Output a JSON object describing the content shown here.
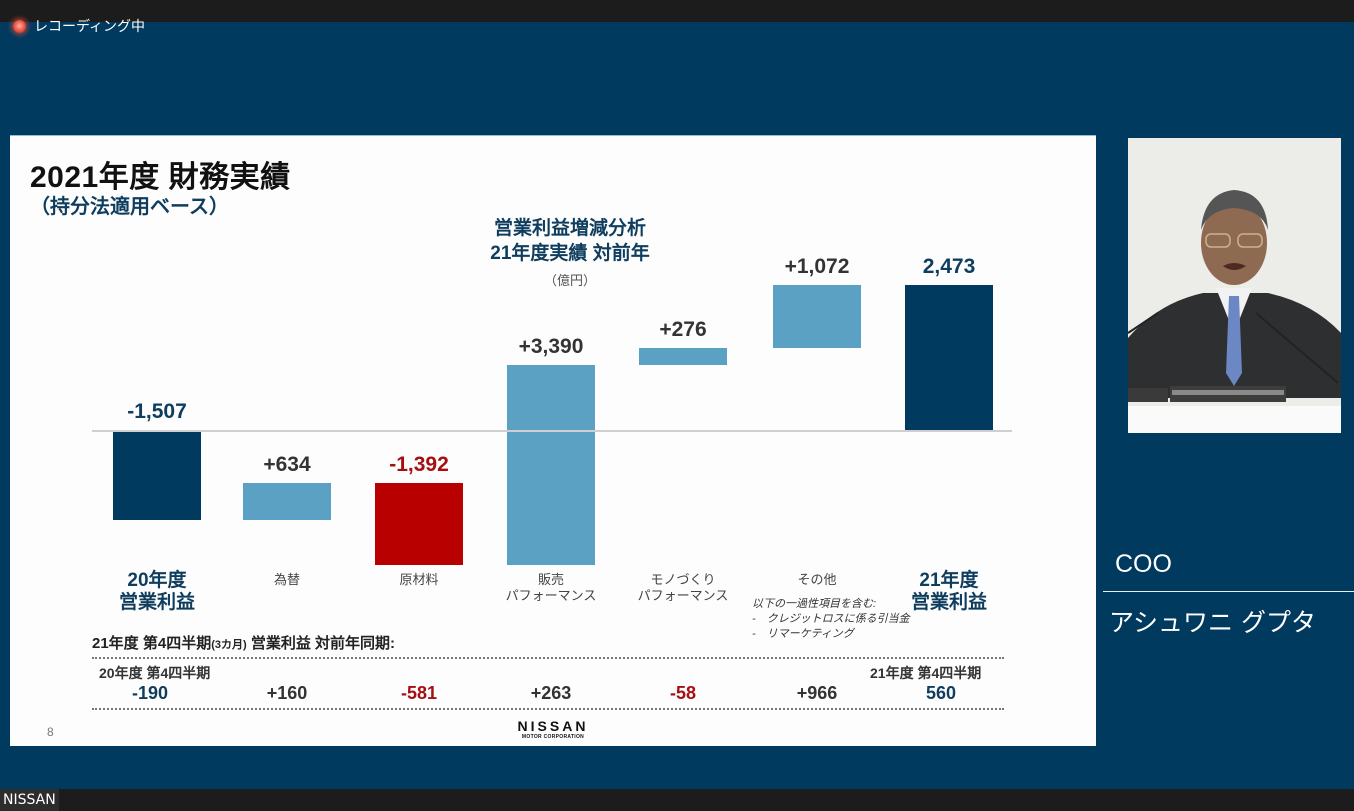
{
  "window": {
    "recording_label": "レコーディング中",
    "source_label": "NISSAN"
  },
  "slide": {
    "title": "2021年度 財務実績",
    "subtitle": "（持分法適用ベース）",
    "chart_title_line1": "営業利益増減分析",
    "chart_title_line2": "21年度実績 対前年",
    "unit": "（億円）",
    "note_lines": [
      "以下の一過性項目を含む:",
      "-　クレジットロスに係る引当金",
      "-　リマーケティング"
    ],
    "q4_heading": "21年度 第4四半期",
    "q4_heading_small": "(3カ月)",
    "q4_heading_tail": " 営業利益 対前年同期:",
    "q4_left_label": "20年度 第4四半期",
    "q4_right_label": "21年度 第4四半期",
    "q4_values": [
      "-190",
      "+160",
      "-581",
      "+263",
      "-58",
      "+966",
      "560"
    ],
    "page_number": "8",
    "logo_main": "NISSAN",
    "logo_sub": "MOTOR CORPORATION"
  },
  "speaker": {
    "title": "COO",
    "name": "アシュワニ グプタ"
  },
  "colors": {
    "background": "#003a5e",
    "total_bar": "#003a5e",
    "positive_bar": "#5aa1c4",
    "negative_bar": "#b80000",
    "negative_text": "#a50f12",
    "total_text": "#0f3d5e",
    "positive_text": "#333333"
  },
  "chart_data": {
    "type": "bar",
    "subtype": "waterfall",
    "title": "営業利益増減分析 21年度実績 対前年",
    "unit": "億円",
    "categories": [
      "20年度 営業利益",
      "為替",
      "原材料",
      "販売 パフォーマンス",
      "モノづくり パフォーマンス",
      "その他",
      "21年度 営業利益"
    ],
    "labels": [
      "-1,507",
      "+634",
      "-1,392",
      "+3,390",
      "+276",
      "+1,072",
      "2,473"
    ],
    "values": [
      -1507,
      634,
      -1392,
      3390,
      276,
      1072,
      2473
    ],
    "kinds": [
      "total",
      "positive",
      "negative",
      "positive",
      "positive",
      "positive",
      "total"
    ],
    "q4_comparison": {
      "title": "21年度 第4四半期(3カ月) 営業利益 対前年同期",
      "values": [
        -190,
        160,
        -581,
        263,
        -58,
        966,
        560
      ]
    },
    "xlabel": "",
    "ylabel": "",
    "grid": false,
    "legend": "none"
  }
}
